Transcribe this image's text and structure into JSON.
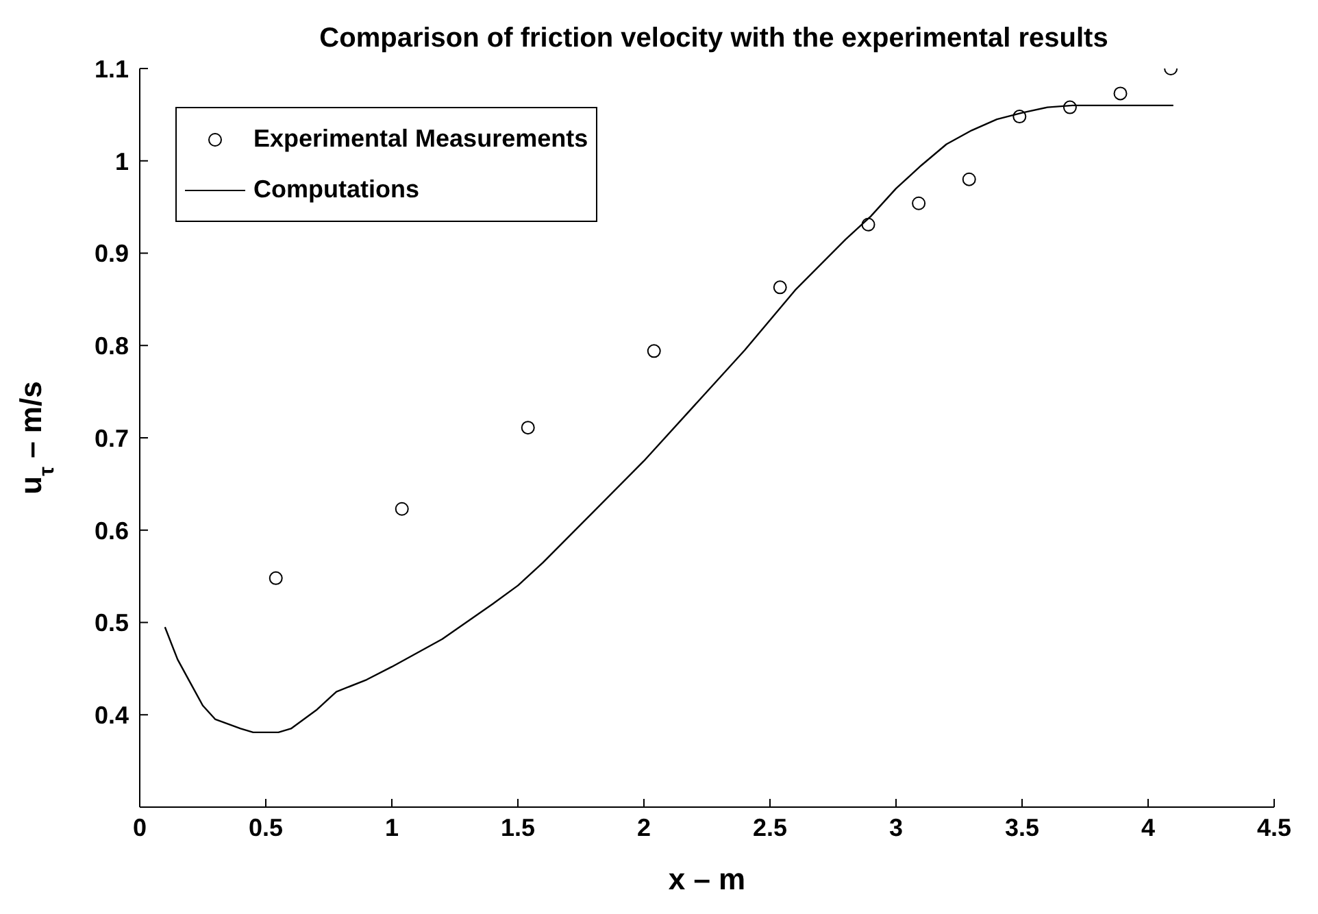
{
  "chart_data": {
    "type": "scatter",
    "title": "Comparison of friction velocity with the experimental results",
    "xlabel": "x – m",
    "ylabel": "u$_{τ}$ – m/s",
    "xlim": [
      0,
      4.5
    ],
    "xticks": [
      0,
      0.5,
      1,
      1.5,
      2,
      2.5,
      3,
      3.5,
      4,
      4.5
    ],
    "ylim": [
      0.3,
      1.1
    ],
    "yticks": [
      0.4,
      0.5,
      0.6,
      0.7,
      0.8,
      0.9,
      1,
      1.1
    ],
    "grid": false,
    "legend": "top left",
    "series": [
      {
        "name": "Experimental Measurements",
        "marker": "circle",
        "color": "#000000",
        "x": [
          0.54,
          1.04,
          1.54,
          2.04,
          2.54,
          2.89,
          3.09,
          3.29,
          3.49,
          3.69,
          3.89,
          4.09
        ],
        "values": [
          0.548,
          0.623,
          0.711,
          0.794,
          0.863,
          0.931,
          0.954,
          0.98,
          1.048,
          1.058,
          1.073,
          1.1
        ]
      },
      {
        "name": "Computations",
        "type": "line",
        "marker": "none",
        "line_style": "solid",
        "color": "#000000",
        "x": [
          0.1,
          0.15,
          0.2,
          0.25,
          0.3,
          0.4,
          0.45,
          0.55,
          0.6,
          0.7,
          0.78,
          0.9,
          1.0,
          1.2,
          1.4,
          1.5,
          1.6,
          1.8,
          2.0,
          2.2,
          2.4,
          2.6,
          2.8,
          2.9,
          3.0,
          3.1,
          3.2,
          3.3,
          3.4,
          3.5,
          3.6,
          3.7,
          4.1
        ],
        "values": [
          0.495,
          0.46,
          0.435,
          0.41,
          0.395,
          0.385,
          0.381,
          0.381,
          0.385,
          0.405,
          0.425,
          0.438,
          0.452,
          0.482,
          0.52,
          0.54,
          0.565,
          0.62,
          0.675,
          0.735,
          0.795,
          0.86,
          0.915,
          0.94,
          0.97,
          0.995,
          1.018,
          1.033,
          1.045,
          1.052,
          1.058,
          1.06,
          1.06
        ]
      }
    ]
  }
}
